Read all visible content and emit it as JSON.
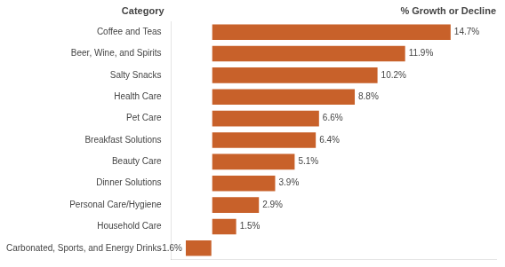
{
  "chart_data": {
    "type": "bar",
    "orientation": "horizontal",
    "categories": [
      "Carbonated, Sports, and Energy Drinks",
      "Household Care",
      "Personal Care/Hygiene",
      "Dinner Solutions",
      "Beauty Care",
      "Breakfast Solutions",
      "Pet Care",
      "Health Care",
      "Salty Snacks",
      "Beer, Wine, and Spirits",
      "Coffee and Teas"
    ],
    "values": [
      -1.6,
      1.5,
      2.9,
      3.9,
      5.1,
      6.4,
      6.6,
      8.8,
      10.2,
      11.9,
      14.7
    ],
    "value_labels": [
      "-1.6%",
      "1.5%",
      "2.9%",
      "3.9%",
      "5.1%",
      "6.4%",
      "6.6%",
      "8.8%",
      "10.2%",
      "11.9%",
      "14.7%"
    ],
    "data_labels": true,
    "color": "#C8612A",
    "ylabel": "Category",
    "xlabel": "% Growth or Decline",
    "xlim": [
      -2.5,
      17.5
    ],
    "tick_labels": "y",
    "grid": false
  }
}
